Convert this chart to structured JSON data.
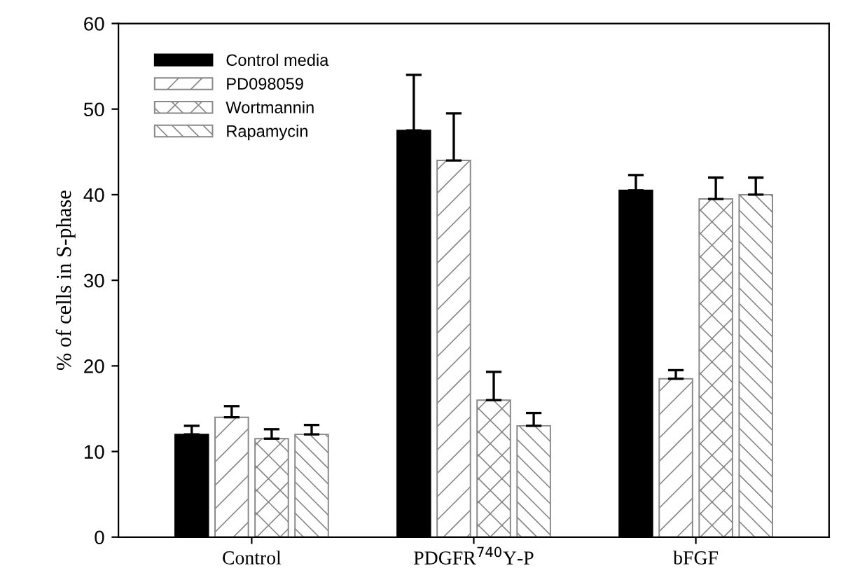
{
  "chart_data": {
    "type": "bar",
    "ylabel": "% of cells in S-phase",
    "categories": [
      "Control",
      "PDGFR$^{740}$Y-P",
      "bFGF"
    ],
    "series": [
      {
        "name": "Control media",
        "color": "#000000",
        "values": [
          12,
          47.5,
          40.5
        ],
        "errors": [
          [
            12,
            13
          ],
          [
            47.5,
            54
          ],
          [
            40.5,
            42.3
          ]
        ]
      },
      {
        "name": "PD098059",
        "color": "#888888",
        "values": [
          14,
          44,
          18.5
        ],
        "errors": [
          [
            14,
            15.3
          ],
          [
            44,
            49.5
          ],
          [
            18.5,
            19.5
          ]
        ]
      },
      {
        "name": "Wortmannin",
        "color": "#888888",
        "values": [
          11.5,
          16,
          39.5
        ],
        "errors": [
          [
            11.5,
            12.6
          ],
          [
            16,
            19.3
          ],
          [
            39.5,
            42
          ]
        ]
      },
      {
        "name": "Rapamycin",
        "color": "#888888",
        "values": [
          12,
          13,
          40
        ],
        "errors": [
          [
            12,
            13.1
          ],
          [
            13,
            14.5
          ],
          [
            40,
            42
          ]
        ]
      }
    ],
    "ylim": [
      0,
      60
    ],
    "yticks": [
      0,
      10,
      20,
      30,
      40,
      50,
      60
    ],
    "grid": false,
    "legend": "top left"
  }
}
